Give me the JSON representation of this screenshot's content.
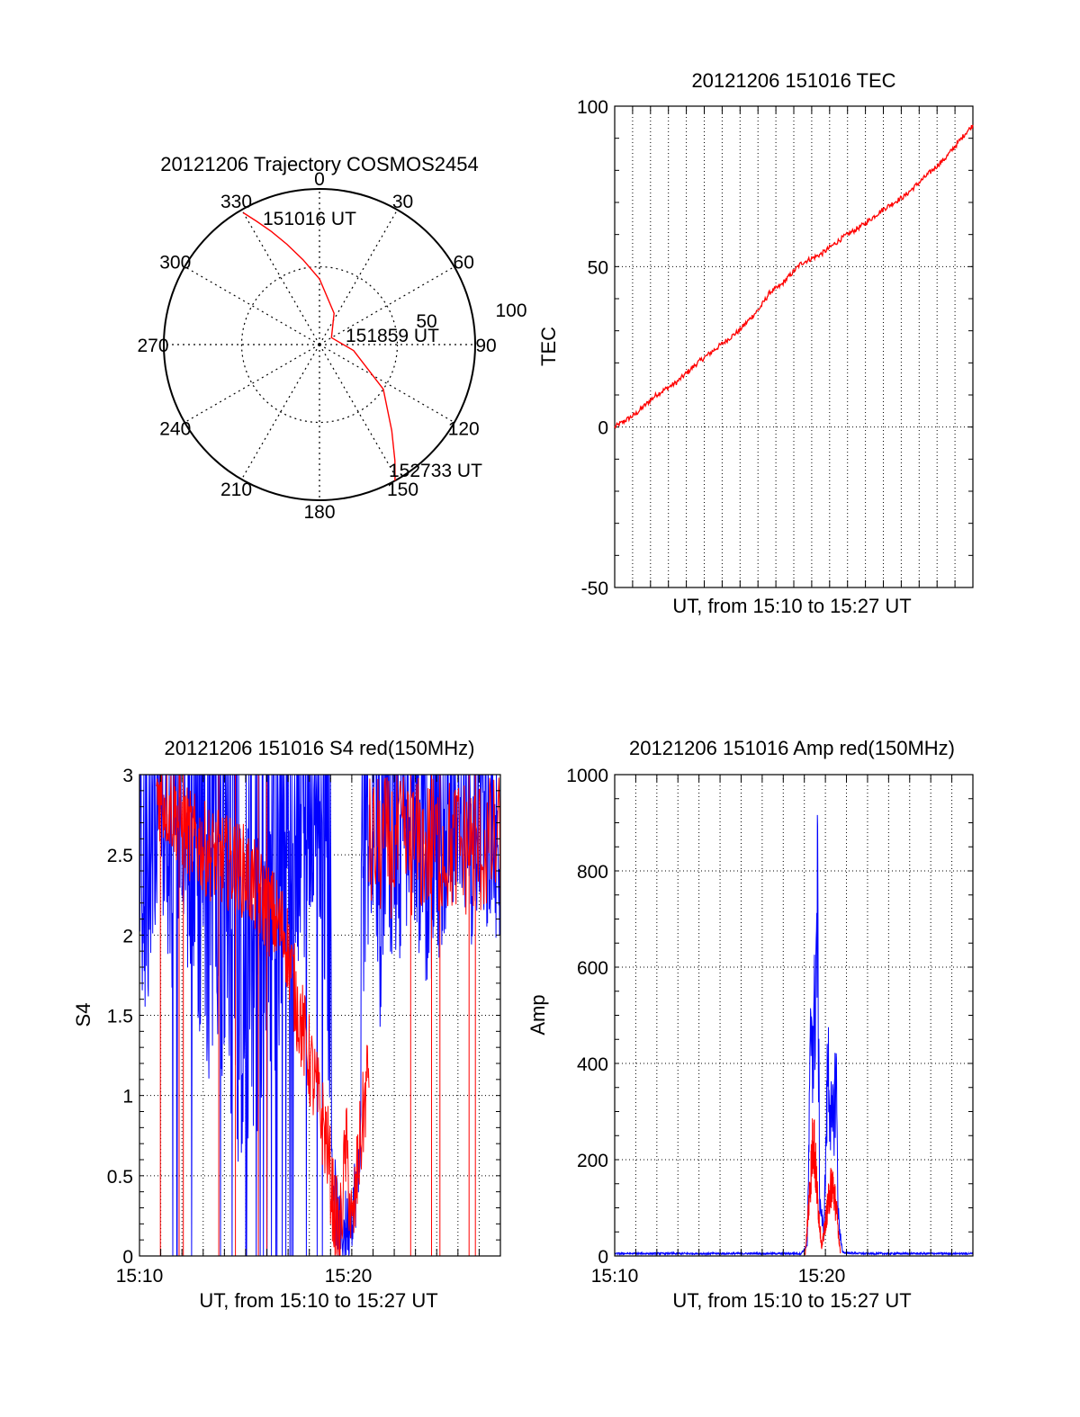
{
  "colors": {
    "background": "#ffffff",
    "axis": "#000000",
    "grid": "#000000",
    "red_trace": "#ff0000",
    "blue_trace": "#0000ff"
  },
  "chart_data": [
    {
      "id": "polar",
      "type": "scatter",
      "polar": true,
      "title": "20121206 Trajectory COSMOS2454",
      "azimuth_labels": [
        "0",
        "30",
        "60",
        "90",
        "120",
        "150",
        "180",
        "210",
        "240",
        "270",
        "300",
        "330"
      ],
      "radial_labels": [
        "50",
        "100"
      ],
      "grid": true,
      "series": [
        {
          "color": "red",
          "azimuth_deg": [
            330,
            333,
            337,
            342,
            349,
            0,
            25,
            60,
            100,
            125,
            140,
            147,
            151
          ],
          "zenith_deg": [
            88,
            80,
            71,
            61,
            50,
            38,
            20,
            8,
            20,
            45,
            65,
            80,
            90
          ]
        }
      ],
      "annotations": [
        "151016 UT",
        "151859 UT",
        "152733 UT"
      ]
    },
    {
      "id": "tec",
      "type": "line",
      "title": "20121206 151016 TEC",
      "xlabel": "UT, from 15:10 to 15:27 UT",
      "ylabel": "TEC",
      "xlim": [
        0,
        17.3
      ],
      "ylim": [
        -50,
        100
      ],
      "yticks": [
        "100",
        "50",
        "0",
        "-50"
      ],
      "grid": true,
      "series": [
        {
          "color": "red",
          "x": [
            0,
            1,
            2,
            3,
            4,
            5,
            6,
            7,
            7.5,
            8,
            9,
            10,
            11,
            12,
            13,
            14,
            15,
            16,
            17,
            17.3
          ],
          "y": [
            0,
            4,
            10,
            14,
            20,
            25,
            30,
            37,
            42,
            44,
            51,
            54,
            59,
            63,
            68,
            72,
            78,
            84,
            92,
            94
          ]
        }
      ]
    },
    {
      "id": "s4",
      "type": "line",
      "title": "20121206 151016 S4 red(150MHz)",
      "xlabel": "UT, from 15:10 to 15:27 UT",
      "ylabel": "S4",
      "xlim": [
        0,
        17.3
      ],
      "ylim": [
        0,
        3
      ],
      "xticks": [
        "15:10",
        "15:20"
      ],
      "yticks": [
        "3",
        "2.5",
        "2",
        "1.5",
        "1",
        "0.5",
        "0"
      ],
      "grid": true,
      "series": [
        {
          "color": "blue",
          "x": [
            0,
            0.5,
            1,
            1.5,
            2,
            3,
            4,
            5,
            6,
            7,
            8,
            8.5,
            9,
            9.3,
            9.6,
            10,
            10.5,
            11,
            11.5,
            12,
            13,
            14,
            15,
            16,
            17,
            17.3
          ],
          "y": [
            1.6,
            1.45,
            2.2,
            1.5,
            2.0,
            1.3,
            0.7,
            0.5,
            0.9,
            1.3,
            1.9,
            2.4,
            1.2,
            0.45,
            0.12,
            0.2,
            0.5,
            2.0,
            1.4,
            1.7,
            2.0,
            1.6,
            2.2,
            1.9,
            2.1,
            1.7
          ]
        },
        {
          "color": "red",
          "x": [
            0.8,
            1.5,
            2.5,
            3.5,
            5,
            6,
            7,
            7.5,
            8,
            8.5,
            9,
            9.3,
            9.6,
            9.9,
            10.2,
            10.5,
            11
          ],
          "y": [
            2.9,
            2.8,
            2.6,
            2.5,
            2.4,
            2.2,
            2.0,
            1.6,
            1.3,
            1.0,
            0.7,
            0.3,
            0.1,
            0.7,
            0.12,
            0.6,
            1.2
          ]
        }
      ]
    },
    {
      "id": "amp",
      "type": "line",
      "title": "20121206 151016 Amp red(150MHz)",
      "xlabel": "UT, from 15:10 to 15:27 UT",
      "ylabel": "Amp",
      "xlim": [
        0,
        17.3
      ],
      "ylim": [
        0,
        1000
      ],
      "xticks": [
        "15:10",
        "15:20"
      ],
      "yticks": [
        "1000",
        "800",
        "600",
        "400",
        "200",
        "0"
      ],
      "grid": true,
      "series": [
        {
          "color": "blue",
          "x": [
            0,
            9,
            9.3,
            9.5,
            9.6,
            9.8,
            9.9,
            10.1,
            10.3,
            10.5,
            10.7,
            10.8,
            11,
            12,
            17.3
          ],
          "y": [
            3,
            3,
            20,
            640,
            500,
            880,
            150,
            50,
            490,
            300,
            460,
            100,
            5,
            3,
            3
          ]
        },
        {
          "color": "red",
          "x": [
            9.2,
            9.4,
            9.6,
            9.8,
            10,
            10.3,
            10.5,
            10.7,
            10.9
          ],
          "y": [
            0,
            150,
            310,
            140,
            20,
            130,
            190,
            120,
            5
          ]
        }
      ]
    }
  ]
}
